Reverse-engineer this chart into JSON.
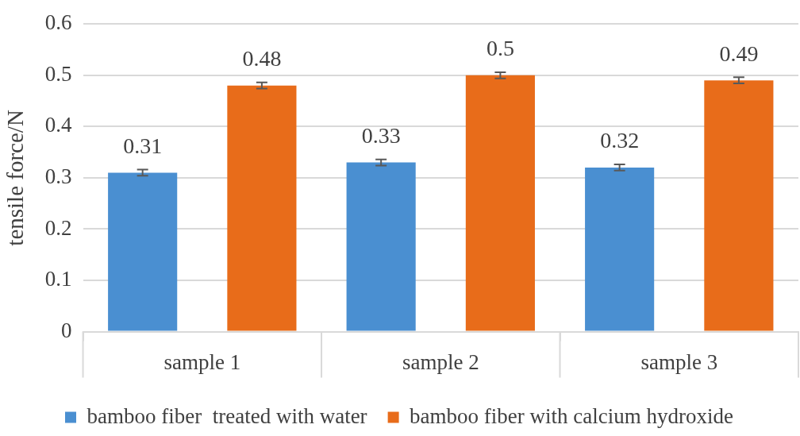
{
  "chart_data": {
    "type": "bar",
    "ylabel": "tensile force/N",
    "categories": [
      "sample 1",
      "sample 2",
      "sample 3"
    ],
    "series": [
      {
        "name": "bamboo fiber  treated with water",
        "color": "#4a8fd1",
        "values": [
          0.31,
          0.33,
          0.32
        ],
        "errors": [
          0.006,
          0.006,
          0.006
        ]
      },
      {
        "name": "bamboo fiber with calcium hydroxide",
        "color": "#e86c1a",
        "values": [
          0.48,
          0.5,
          0.49
        ],
        "errors": [
          0.006,
          0.006,
          0.006
        ]
      }
    ],
    "ylim": [
      0,
      0.6
    ],
    "yticks": [
      0,
      0.1,
      0.2,
      0.3,
      0.4,
      0.5,
      0.6
    ],
    "grid": "y",
    "legend": "bottom",
    "data_labels": true
  }
}
